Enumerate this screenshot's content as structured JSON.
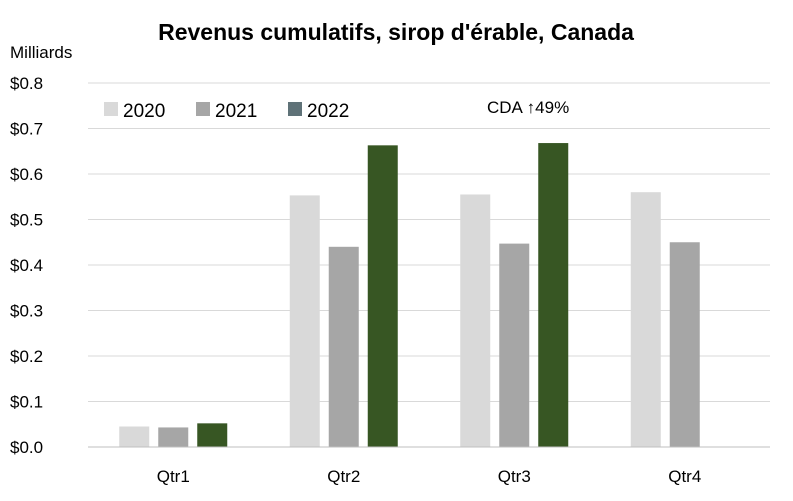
{
  "chart_data": {
    "type": "bar",
    "title": "Revenus cumulatifs, sirop d'érable, Canada",
    "unit_label": "Milliards",
    "categories": [
      "Qtr1",
      "Qtr2",
      "Qtr3",
      "Qtr4"
    ],
    "series": [
      {
        "name": "2020",
        "color": "#d9d9d9",
        "values": [
          0.045,
          0.553,
          0.555,
          0.56
        ]
      },
      {
        "name": "2021",
        "color": "#a6a6a6",
        "values": [
          0.043,
          0.44,
          0.447,
          0.45
        ]
      },
      {
        "name": "2022",
        "color": "#375623",
        "values": [
          0.052,
          0.663,
          0.668,
          null
        ]
      }
    ],
    "legend_swatch_2022": "#5f7278",
    "ylim": [
      0,
      0.8
    ],
    "yticks": [
      "$0.0",
      "$0.1",
      "$0.2",
      "$0.3",
      "$0.4",
      "$0.5",
      "$0.6",
      "$0.7",
      "$0.8"
    ],
    "grid": true,
    "legend_position": "top-left",
    "annotation": "CDA  ↑49%"
  }
}
